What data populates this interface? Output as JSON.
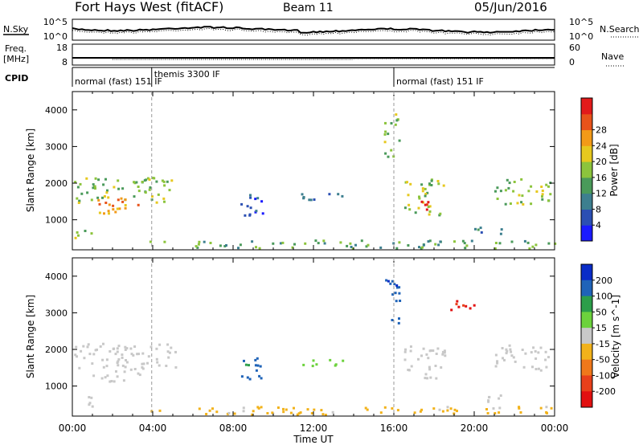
{
  "header": {
    "radar": "Fort Hays West (fitACF)",
    "beam": "Beam 11",
    "date": "05/Jun/2016"
  },
  "top_panels": {
    "nsky_label": "N.Sky",
    "nsearch_label": "N.Search",
    "freq_label_1": "Freq.",
    "freq_label_2": "[MHz]",
    "nave_label": "Nave",
    "cpid_label": "CPID",
    "noise_left_ticks": [
      "10^5",
      "10^0"
    ],
    "noise_right_ticks": [
      "10^5",
      "10^0"
    ],
    "freq_ticks": [
      "18",
      "8"
    ],
    "nave_ticks": [
      "60",
      "0"
    ]
  },
  "cpid": {
    "modes": [
      {
        "label": "normal (fast) 151 IF",
        "start_hour": 0.0
      },
      {
        "label": "themis 3300 IF",
        "start_hour": 3.95
      },
      {
        "label": "normal (fast) 151 IF",
        "start_hour": 16.0
      }
    ]
  },
  "x_axis": {
    "label": "Time UT",
    "ticks": [
      "00:00",
      "04:00",
      "08:00",
      "12:00",
      "16:00",
      "20:00",
      "00:00"
    ],
    "tick_hours": [
      0,
      4,
      8,
      12,
      16,
      20,
      24
    ]
  },
  "chart_data": [
    {
      "type": "heatmap",
      "title": "",
      "xlabel": "Time UT",
      "ylabel": "Slant Range [km]",
      "xlim": [
        0,
        24
      ],
      "ylim": [
        180,
        4500
      ],
      "yticks": [
        1000,
        2000,
        3000,
        4000
      ],
      "colorbar": {
        "label": "Power [dB]",
        "ticks": [
          "4",
          "8",
          "12",
          "16",
          "20",
          "24",
          "28"
        ],
        "range": [
          0,
          30
        ],
        "colors": [
          "#1a1aff",
          "#2b4fb3",
          "#3d7f8f",
          "#4a9a5a",
          "#8cc43c",
          "#e6c81e",
          "#f29a18",
          "#e8531a",
          "#e21a1a"
        ]
      },
      "echo_regions": [
        {
          "t0": 0.0,
          "t1": 5.2,
          "r0": 1450,
          "r1": 2150,
          "level": 14
        },
        {
          "t0": 1.0,
          "t1": 3.5,
          "r0": 1100,
          "r1": 1600,
          "level": 22
        },
        {
          "t0": 0.0,
          "t1": 1.0,
          "r0": 400,
          "r1": 700,
          "level": 14
        },
        {
          "t0": 3.8,
          "t1": 5.0,
          "r0": 300,
          "r1": 420,
          "level": 14
        },
        {
          "t0": 6.0,
          "t1": 24.0,
          "r0": 200,
          "r1": 420,
          "level": 12
        },
        {
          "t0": 8.3,
          "t1": 9.5,
          "r0": 1100,
          "r1": 1800,
          "level": 6
        },
        {
          "t0": 11.0,
          "t1": 14.0,
          "r0": 1500,
          "r1": 1700,
          "level": 8
        },
        {
          "t0": 15.5,
          "t1": 16.3,
          "r0": 2700,
          "r1": 3900,
          "level": 14
        },
        {
          "t0": 16.5,
          "t1": 18.5,
          "r0": 1100,
          "r1": 2100,
          "level": 16
        },
        {
          "t0": 17.0,
          "t1": 17.8,
          "r0": 1150,
          "r1": 1500,
          "level": 26
        },
        {
          "t0": 20.0,
          "t1": 21.5,
          "r0": 550,
          "r1": 800,
          "level": 8
        },
        {
          "t0": 21.0,
          "t1": 23.8,
          "r0": 1400,
          "r1": 2100,
          "level": 14
        }
      ]
    },
    {
      "type": "heatmap",
      "title": "",
      "xlabel": "Time UT",
      "ylabel": "Slant Range [km]",
      "xlim": [
        0,
        24
      ],
      "ylim": [
        180,
        4500
      ],
      "yticks": [
        1000,
        2000,
        3000,
        4000
      ],
      "colorbar": {
        "label": "Velocity [m s^-1]",
        "ticks": [
          "200",
          "100",
          "50",
          "15",
          "-15",
          "-50",
          "-100",
          "-200"
        ],
        "range": [
          -250,
          250
        ],
        "colors": [
          "#0a2cc8",
          "#1f63b8",
          "#2c9e4a",
          "#6cd23c",
          "#c8c8c8",
          "#f2b21a",
          "#f0781a",
          "#e8401a",
          "#e21010"
        ]
      },
      "echo_regions": [
        {
          "t0": 0.0,
          "t1": 5.2,
          "r0": 1450,
          "r1": 2150,
          "level": 0
        },
        {
          "t0": 1.0,
          "t1": 3.5,
          "r0": 1100,
          "r1": 1600,
          "level": 0
        },
        {
          "t0": 0.0,
          "t1": 1.0,
          "r0": 400,
          "r1": 700,
          "level": 0
        },
        {
          "t0": 3.8,
          "t1": 5.0,
          "r0": 300,
          "r1": 420,
          "level": -80
        },
        {
          "t0": 6.0,
          "t1": 24.0,
          "r0": 200,
          "r1": 420,
          "level": -40
        },
        {
          "t0": 11.0,
          "t1": 13.5,
          "r0": 1500,
          "r1": 1700,
          "level": 40
        },
        {
          "t0": 8.3,
          "t1": 9.5,
          "r0": 1100,
          "r1": 1800,
          "level": 150
        },
        {
          "t0": 15.5,
          "t1": 16.3,
          "r0": 2700,
          "r1": 3900,
          "level": 180
        },
        {
          "t0": 16.5,
          "t1": 18.5,
          "r0": 1100,
          "r1": 2100,
          "level": 0
        },
        {
          "t0": 18.8,
          "t1": 20.0,
          "r0": 3000,
          "r1": 3400,
          "level": -200
        },
        {
          "t0": 20.0,
          "t1": 21.5,
          "r0": 550,
          "r1": 800,
          "level": 0
        },
        {
          "t0": 21.0,
          "t1": 23.8,
          "r0": 1400,
          "r1": 2100,
          "level": 0
        }
      ]
    }
  ]
}
